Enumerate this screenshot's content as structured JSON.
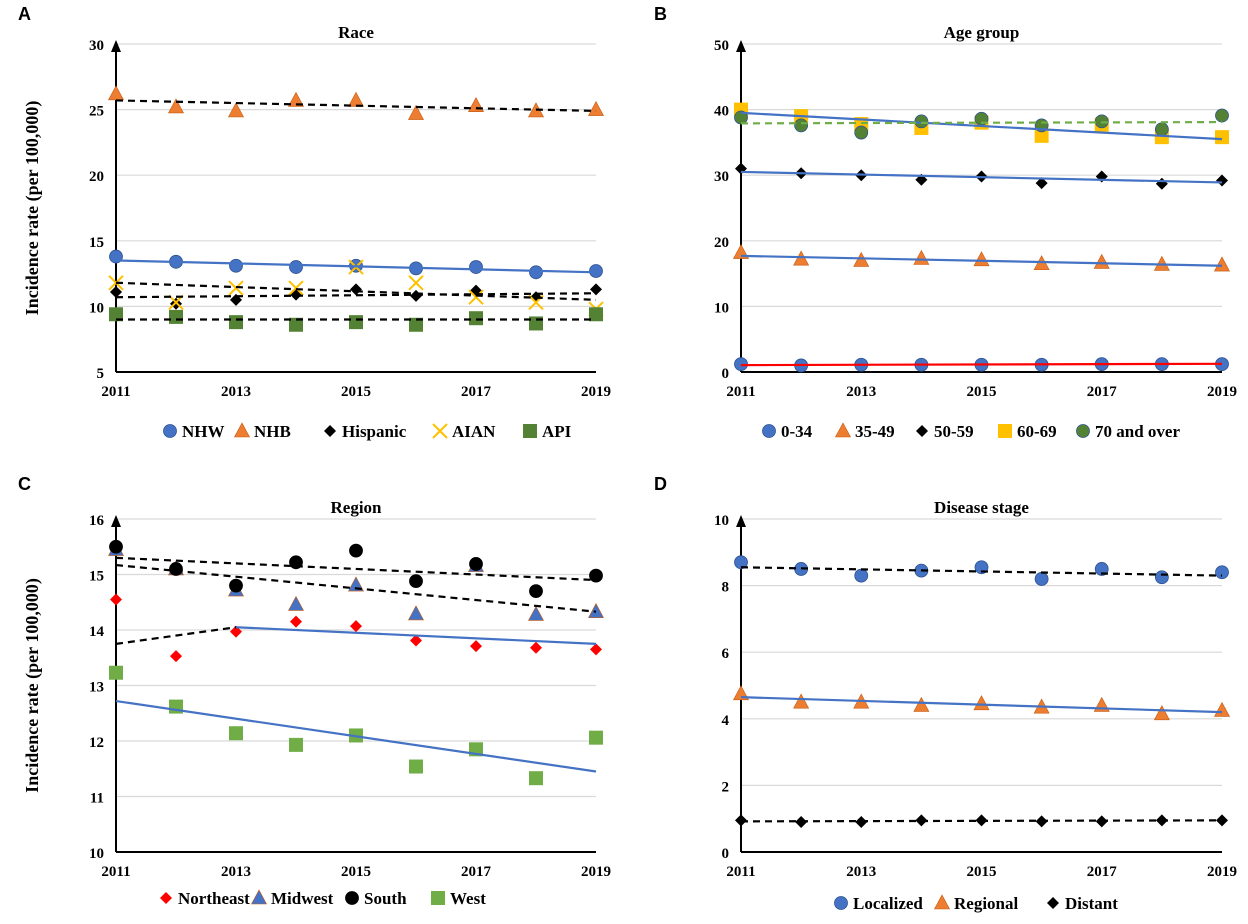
{
  "y_axis_label": "Incidence rate (per 100,000)",
  "chart_data": [
    {
      "panel": "A",
      "type": "scatter",
      "title": "Race",
      "x": [
        2011,
        2012,
        2013,
        2014,
        2015,
        2016,
        2017,
        2018,
        2019
      ],
      "x_tick_labels": [
        "2011",
        "2013",
        "2015",
        "2017",
        "2019"
      ],
      "ylim": [
        5,
        30
      ],
      "y_ticks": [
        5,
        10,
        15,
        20,
        25,
        30
      ],
      "ylabel": "Incidence rate (per 100,000)",
      "series": [
        {
          "name": "NHW",
          "marker": "circle",
          "color": "#4472C4",
          "values": [
            13.8,
            13.4,
            13.1,
            13.0,
            13.1,
            12.9,
            13.0,
            12.6,
            12.7
          ]
        },
        {
          "name": "NHB",
          "marker": "triangle",
          "color": "#ED7D31",
          "values": [
            26.2,
            25.2,
            24.9,
            25.7,
            25.7,
            24.7,
            25.3,
            24.9,
            25.0
          ]
        },
        {
          "name": "Hispanic",
          "marker": "diamond",
          "color": "#000000",
          "values": [
            11.1,
            10.2,
            10.5,
            10.9,
            11.3,
            10.8,
            11.2,
            10.7,
            11.3
          ]
        },
        {
          "name": "AIAN",
          "marker": "x",
          "color": "#FFC000",
          "values": [
            11.8,
            10.3,
            11.4,
            11.4,
            13.0,
            11.8,
            10.7,
            10.3,
            9.8
          ]
        },
        {
          "name": "API",
          "marker": "square",
          "color": "#548235",
          "values": [
            9.4,
            9.2,
            8.8,
            8.6,
            8.8,
            8.6,
            9.1,
            8.7,
            9.4
          ]
        }
      ],
      "trend_lines": [
        {
          "of": "NHW",
          "style": "solid",
          "color": "#4472C4",
          "points": [
            [
              2011,
              13.5
            ],
            [
              2019,
              12.6
            ]
          ]
        },
        {
          "of": "NHB",
          "style": "dashed",
          "color": "#000000",
          "points": [
            [
              2011,
              25.7
            ],
            [
              2019,
              24.9
            ]
          ]
        },
        {
          "of": "AIAN",
          "style": "dashed",
          "color": "#000000",
          "points": [
            [
              2011,
              11.8
            ],
            [
              2019,
              10.5
            ]
          ]
        },
        {
          "of": "Hispanic",
          "style": "dashed",
          "color": "#000000",
          "points": [
            [
              2011,
              10.7
            ],
            [
              2019,
              11.0
            ]
          ]
        },
        {
          "of": "API",
          "style": "dashed",
          "color": "#000000",
          "points": [
            [
              2011,
              9.0
            ],
            [
              2019,
              9.0
            ]
          ]
        }
      ]
    },
    {
      "panel": "B",
      "type": "scatter",
      "title": "Age group",
      "x": [
        2011,
        2012,
        2013,
        2014,
        2015,
        2016,
        2017,
        2018,
        2019
      ],
      "x_tick_labels": [
        "2011",
        "2013",
        "2015",
        "2017",
        "2019"
      ],
      "ylim": [
        0,
        50
      ],
      "y_ticks": [
        0,
        10,
        20,
        30,
        40,
        50
      ],
      "ylabel": "",
      "series": [
        {
          "name": "0-34",
          "marker": "circle",
          "color": "#4472C4",
          "values": [
            1.2,
            1.0,
            1.1,
            1.1,
            1.1,
            1.1,
            1.2,
            1.2,
            1.2
          ]
        },
        {
          "name": "35-49",
          "marker": "triangle",
          "color": "#ED7D31",
          "values": [
            18.2,
            17.2,
            17.0,
            17.3,
            17.1,
            16.5,
            16.7,
            16.4,
            16.3
          ]
        },
        {
          "name": "50-59",
          "marker": "diamond",
          "color": "#000000",
          "values": [
            31.0,
            30.3,
            30.0,
            29.3,
            29.8,
            28.8,
            29.8,
            28.7,
            29.2
          ]
        },
        {
          "name": "60-69",
          "marker": "square",
          "color": "#FFC000",
          "values": [
            40.0,
            39.0,
            37.8,
            37.2,
            38.0,
            36.0,
            37.7,
            35.8,
            35.8
          ]
        },
        {
          "name": "70 and over",
          "marker": "circle",
          "color": "#548235",
          "values": [
            38.8,
            37.6,
            36.5,
            38.2,
            38.6,
            37.6,
            38.2,
            37.0,
            39.1
          ]
        }
      ],
      "trend_lines": [
        {
          "of": "60-69",
          "style": "solid",
          "color": "#4472C4",
          "points": [
            [
              2011,
              39.5
            ],
            [
              2019,
              35.5
            ]
          ]
        },
        {
          "of": "70 and over",
          "style": "dashed",
          "color": "#70AD47",
          "points": [
            [
              2011,
              37.9
            ],
            [
              2019,
              38.1
            ]
          ]
        },
        {
          "of": "50-59",
          "style": "solid",
          "color": "#4472C4",
          "points": [
            [
              2011,
              30.5
            ],
            [
              2019,
              28.9
            ]
          ]
        },
        {
          "of": "35-49",
          "style": "solid",
          "color": "#4472C4",
          "points": [
            [
              2011,
              17.7
            ],
            [
              2019,
              16.2
            ]
          ]
        },
        {
          "of": "0-34",
          "style": "solid",
          "color": "#FF0000",
          "points": [
            [
              2011,
              1.05
            ],
            [
              2019,
              1.25
            ]
          ]
        }
      ]
    },
    {
      "panel": "C",
      "type": "scatter",
      "title": "Region",
      "x": [
        2011,
        2012,
        2013,
        2014,
        2015,
        2016,
        2017,
        2018,
        2019
      ],
      "x_tick_labels": [
        "2011",
        "2013",
        "2015",
        "2017",
        "2019"
      ],
      "ylim": [
        10,
        16
      ],
      "y_ticks": [
        10,
        11,
        12,
        13,
        14,
        15,
        16
      ],
      "ylabel": "Incidence rate (per 100,000)",
      "series": [
        {
          "name": "Northeast",
          "marker": "diamond",
          "color": "#FF0000",
          "values": [
            14.55,
            13.53,
            13.97,
            14.15,
            14.07,
            13.81,
            13.71,
            13.68,
            13.65
          ]
        },
        {
          "name": "Midwest",
          "marker": "triangle",
          "color": "#4472C4",
          "values": [
            15.45,
            15.1,
            14.72,
            14.46,
            14.81,
            14.29,
            15.16,
            14.28,
            14.33
          ]
        },
        {
          "name": "South",
          "marker": "circle",
          "color": "#000000",
          "values": [
            15.5,
            15.1,
            14.8,
            15.22,
            15.43,
            14.88,
            15.19,
            14.7,
            14.98
          ]
        },
        {
          "name": "West",
          "marker": "square",
          "color": "#70AD47",
          "values": [
            13.23,
            12.62,
            12.14,
            11.93,
            12.1,
            11.54,
            11.85,
            11.33,
            12.06
          ]
        }
      ],
      "trend_lines": [
        {
          "of": "South",
          "style": "dashed",
          "color": "#000000",
          "points": [
            [
              2011,
              15.3
            ],
            [
              2019,
              14.9
            ]
          ]
        },
        {
          "of": "Midwest",
          "style": "dashed",
          "color": "#000000",
          "points": [
            [
              2011,
              15.17
            ],
            [
              2019,
              14.33
            ]
          ]
        },
        {
          "of": "Northeast",
          "style": "dashed",
          "color": "#000000",
          "points": [
            [
              2011,
              13.75
            ],
            [
              2013,
              14.05
            ]
          ]
        },
        {
          "of": "Northeast",
          "style": "solid",
          "color": "#4472C4",
          "points": [
            [
              2013,
              14.05
            ],
            [
              2019,
              13.75
            ]
          ]
        },
        {
          "of": "West",
          "style": "solid",
          "color": "#4472C4",
          "points": [
            [
              2011,
              12.72
            ],
            [
              2019,
              11.45
            ]
          ]
        }
      ]
    },
    {
      "panel": "D",
      "type": "scatter",
      "title": "Disease stage",
      "x": [
        2011,
        2012,
        2013,
        2014,
        2015,
        2016,
        2017,
        2018,
        2019
      ],
      "x_tick_labels": [
        "2011",
        "2013",
        "2015",
        "2017",
        "2019"
      ],
      "ylim": [
        0,
        10
      ],
      "y_ticks": [
        0,
        2,
        4,
        6,
        8,
        10
      ],
      "ylabel": "",
      "series": [
        {
          "name": "Localized",
          "marker": "circle",
          "color": "#4472C4",
          "values": [
            8.7,
            8.5,
            8.3,
            8.45,
            8.55,
            8.2,
            8.5,
            8.25,
            8.4
          ]
        },
        {
          "name": "Regional",
          "marker": "triangle",
          "color": "#ED7D31",
          "values": [
            4.75,
            4.5,
            4.5,
            4.4,
            4.45,
            4.35,
            4.4,
            4.15,
            4.25
          ]
        },
        {
          "name": "Distant",
          "marker": "diamond",
          "color": "#000000",
          "values": [
            0.95,
            0.9,
            0.9,
            0.95,
            0.95,
            0.92,
            0.92,
            0.95,
            0.95
          ]
        }
      ],
      "trend_lines": [
        {
          "of": "Localized",
          "style": "dashed",
          "color": "#000000",
          "points": [
            [
              2011,
              8.55
            ],
            [
              2019,
              8.3
            ]
          ]
        },
        {
          "of": "Regional",
          "style": "solid",
          "color": "#4472C4",
          "points": [
            [
              2011,
              4.65
            ],
            [
              2019,
              4.2
            ]
          ]
        },
        {
          "of": "Distant",
          "style": "dashed",
          "color": "#000000",
          "points": [
            [
              2011,
              0.92
            ],
            [
              2019,
              0.95
            ]
          ]
        }
      ]
    }
  ]
}
